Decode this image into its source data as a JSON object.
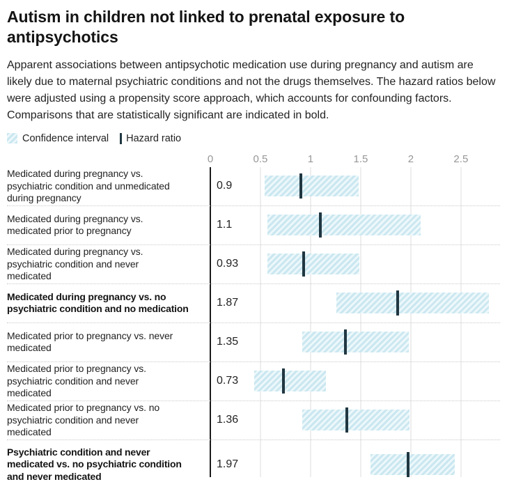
{
  "header": {
    "title": "Autism in children not linked to prenatal exposure to antipsychotics",
    "description": "Apparent associations between antipsychotic medication use during pregnancy and autism are likely due to maternal psychiatric conditions and not the drugs themselves. The hazard ratios below were adjusted using a propensity score approach, which accounts for confounding factors. Comparisons that are statistically significant are indicated in bold."
  },
  "legend": {
    "confidence_interval_label": "Confidence interval",
    "hazard_ratio_label": "Hazard ratio"
  },
  "chart_data": {
    "type": "bar",
    "subtype": "horizontal-confidence-interval-ranges",
    "xlabel": "Hazard ratio",
    "grid": true,
    "x_axis": {
      "ticks": [
        0,
        0.5,
        1,
        1.5,
        2,
        2.5
      ],
      "tick_labels": [
        "0",
        "0.5",
        "1",
        "1.5",
        "2",
        "2.5"
      ],
      "range": [
        0,
        2.89
      ]
    },
    "rows": [
      {
        "label": "Medicated during pregnancy vs.\npsychiatric condition and unmedicated\nduring pregnancy",
        "value_label": "0.9",
        "hazard_ratio": 0.9,
        "ci_low": 0.54,
        "ci_high": 1.48,
        "significant": false
      },
      {
        "label": "Medicated during pregnancy vs.\nmedicated prior to pregnancy",
        "value_label": "1.1",
        "hazard_ratio": 1.1,
        "ci_low": 0.57,
        "ci_high": 2.1,
        "significant": false
      },
      {
        "label": "Medicated during pregnancy vs.\npsychiatric condition and never\nmedicated",
        "value_label": "0.93",
        "hazard_ratio": 0.93,
        "ci_low": 0.57,
        "ci_high": 1.49,
        "significant": false
      },
      {
        "label": "Medicated during pregnancy vs. no\npsychiatric condition and no medication",
        "value_label": "1.87",
        "hazard_ratio": 1.87,
        "ci_low": 1.26,
        "ci_high": 2.78,
        "significant": true
      },
      {
        "label": "Medicated prior to pregnancy vs. never\nmedicated",
        "value_label": "1.35",
        "hazard_ratio": 1.35,
        "ci_low": 0.92,
        "ci_high": 1.98,
        "significant": false
      },
      {
        "label": "Medicated prior to pregnancy vs.\npsychiatric condition and never\nmedicated",
        "value_label": "0.73",
        "hazard_ratio": 0.73,
        "ci_low": 0.44,
        "ci_high": 1.15,
        "significant": false
      },
      {
        "label": "Medicated prior to pregnancy vs. no\npsychiatric condition and never\nmedicated",
        "value_label": "1.36",
        "hazard_ratio": 1.36,
        "ci_low": 0.92,
        "ci_high": 1.99,
        "significant": false
      },
      {
        "label": "Psychiatric condition and never\nmedicated vs. no psychiatric condition\nand never medicated",
        "value_label": "1.97",
        "hazard_ratio": 1.97,
        "ci_low": 1.6,
        "ci_high": 2.44,
        "significant": true
      }
    ],
    "colors": {
      "ci_fill": "#cbe7f0",
      "ci_fill_alt": "#edf8fb",
      "hr_line": "#203742",
      "axis_line": "#1a1a1a",
      "gridline": "#dddddd",
      "tick_label": "#979797"
    }
  }
}
